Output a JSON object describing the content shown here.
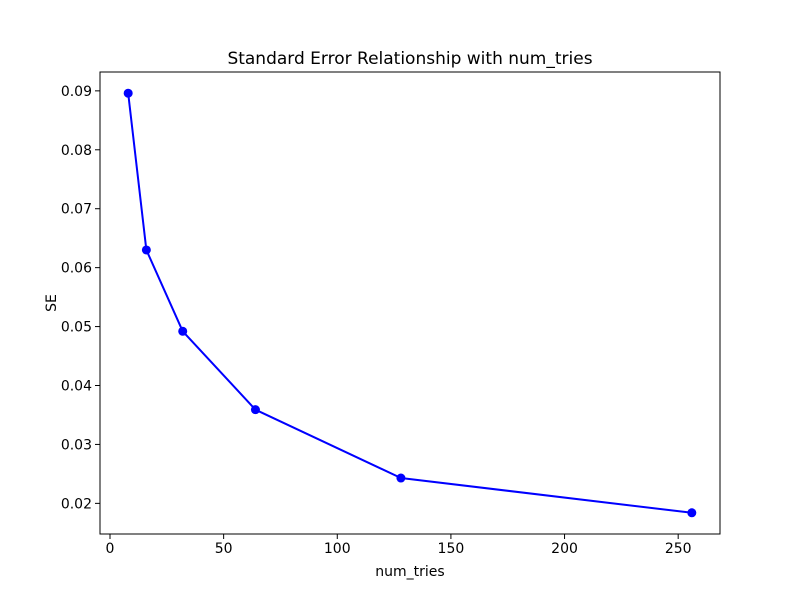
{
  "figure": {
    "background": "#ffffff",
    "text_color": "#000000",
    "axis_color": "#000000"
  },
  "chart_data": {
    "type": "line",
    "title": "Standard Error Relationship with num_tries",
    "xlabel": "num_tries",
    "ylabel": "SE",
    "x": [
      8,
      16,
      32,
      64,
      128,
      256
    ],
    "y": [
      0.0896,
      0.063,
      0.0492,
      0.0359,
      0.0243,
      0.0184
    ],
    "line_color": "#0000ff",
    "marker": "circle",
    "xlim": [
      -4.4,
      268.4
    ],
    "ylim": [
      0.0148,
      0.0932
    ],
    "xticks": [
      0,
      50,
      100,
      150,
      200,
      250
    ],
    "yticks": [
      0.02,
      0.03,
      0.04,
      0.05,
      0.06,
      0.07,
      0.08,
      0.09
    ],
    "ytick_decimals": 2,
    "grid": false,
    "legend": "none"
  }
}
